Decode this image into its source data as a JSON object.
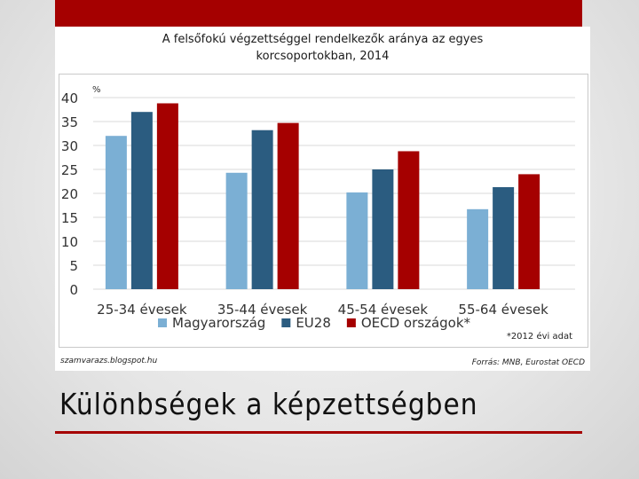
{
  "slide": {
    "title": "Különbségek a képzettségben"
  },
  "chart_header": {
    "line1": "A felsőfokú végzettséggel rendelkezők aránya az egyes",
    "line2": "korcsoportokban, 2014"
  },
  "footer": {
    "left": "szamvarazs.blogspot.hu",
    "right": "Forrás: MNB, Eurostat OECD",
    "note": "*2012 évi adat"
  },
  "chart_data": {
    "type": "bar",
    "title": "A felsőfokú végzettséggel rendelkezők aránya az egyes korcsoportokban, 2014",
    "ylabel": "%",
    "xlabel": "",
    "ylim": [
      0,
      40
    ],
    "yticks": [
      0,
      5,
      10,
      15,
      20,
      25,
      30,
      35,
      40
    ],
    "grid": true,
    "legend_position": "bottom",
    "categories": [
      "25-34 évesek",
      "35-44 évesek",
      "45-54 évesek",
      "55-64 évesek"
    ],
    "series": [
      {
        "name": "Magyarország",
        "color": "#7bafd4",
        "values": [
          32,
          24.3,
          20.2,
          16.7
        ]
      },
      {
        "name": "EU28",
        "color": "#2b5c80",
        "values": [
          37,
          33.2,
          25,
          21.3
        ]
      },
      {
        "name": "OECD országok*",
        "color": "#a50000",
        "values": [
          38.8,
          34.7,
          28.8,
          24
        ]
      }
    ]
  }
}
